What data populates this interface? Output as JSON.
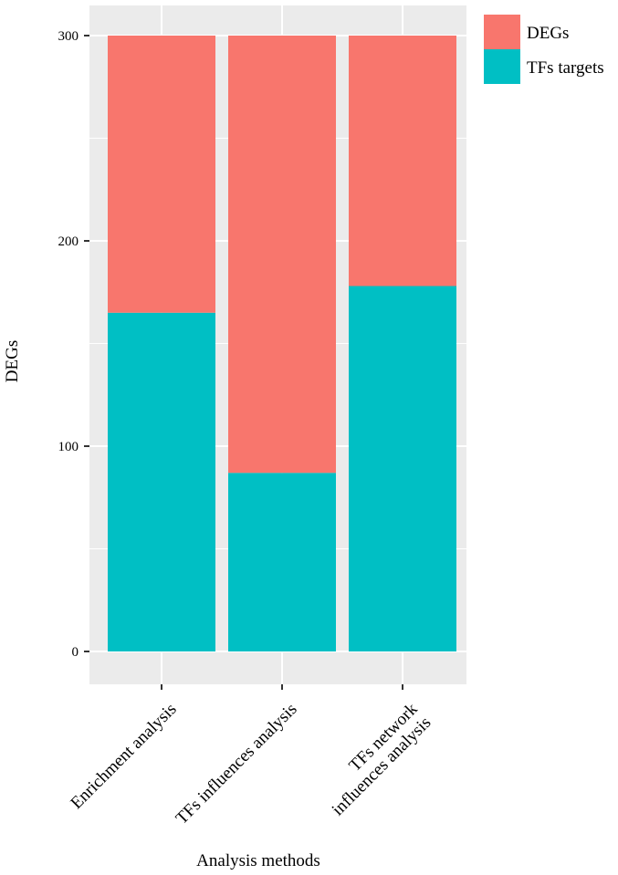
{
  "chart_data": {
    "type": "bar",
    "stacked": true,
    "categories": [
      "Enrichment analysis",
      "TFs influences analysis",
      "TFs network influences analysis"
    ],
    "category_label_lines": [
      [
        "Enrichment analysis"
      ],
      [
        "TFs influences analysis"
      ],
      [
        "TFs network",
        "influences analysis"
      ]
    ],
    "series": [
      {
        "name": "TFs targets",
        "values": [
          165,
          87,
          178
        ],
        "color": "#00BFC4"
      },
      {
        "name": "DEGs",
        "values": [
          135,
          213,
          122
        ],
        "color": "#F8766D"
      }
    ],
    "xlabel": "Analysis methods",
    "ylabel": "DEGs",
    "ylim": [
      0,
      300
    ],
    "yticks": [
      0,
      100,
      200,
      300
    ],
    "ytick_labels": [
      "0",
      "100",
      "200",
      "300"
    ],
    "grid": true,
    "panel_background": "#EBEBEB",
    "legend_position": "top-right",
    "legend_order": [
      "DEGs",
      "TFs targets"
    ]
  }
}
